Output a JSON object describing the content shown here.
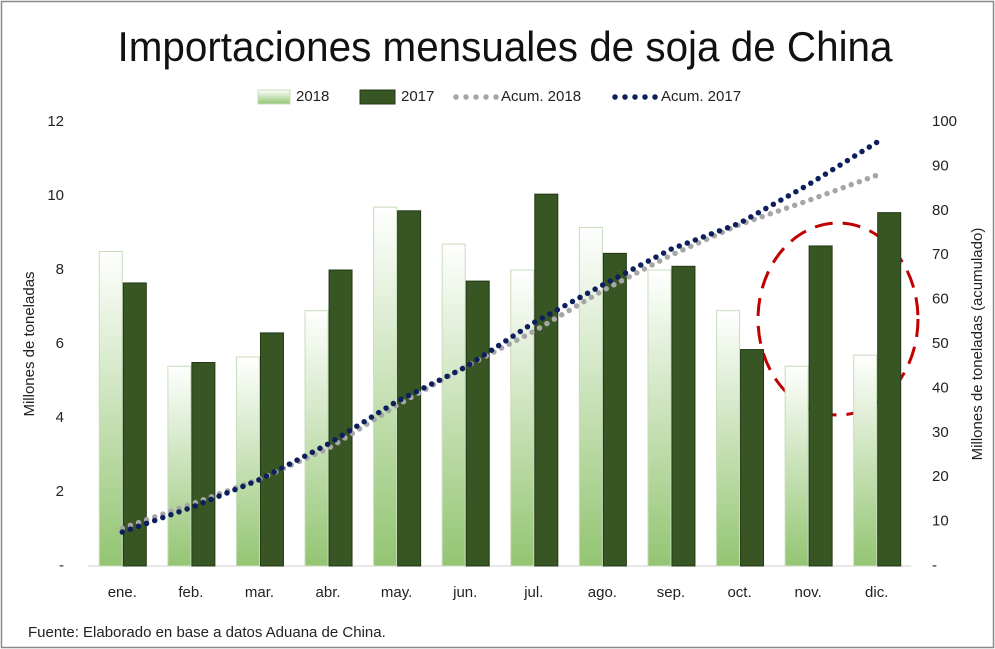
{
  "chart_data": {
    "type": "bar",
    "title": "Importaciones mensuales de soja de China",
    "y_label": "Millones de toneladas",
    "y2_label": "Millones de toneladas (acumulado)",
    "source": "Fuente: Elaborado en base a datos Aduana de China.",
    "categories": [
      "ene.",
      "feb.",
      "mar.",
      "abr.",
      "may.",
      "jun.",
      "jul.",
      "ago.",
      "sep.",
      "oct.",
      "nov.",
      "dic."
    ],
    "series": [
      {
        "name": "2018",
        "type": "bar",
        "color": "#93c572",
        "values": [
          8.5,
          5.4,
          5.65,
          6.9,
          9.7,
          8.7,
          8.0,
          9.15,
          8.0,
          6.9,
          5.4,
          5.7
        ]
      },
      {
        "name": "2017",
        "type": "bar",
        "color": "#375623",
        "values": [
          7.65,
          5.5,
          6.3,
          8.0,
          9.6,
          7.7,
          10.05,
          8.45,
          8.1,
          5.85,
          8.65,
          9.55
        ]
      },
      {
        "name": "Acum. 2018",
        "type": "line",
        "axis": "y2",
        "color": "#a6a6a6",
        "values": [
          8.5,
          13.9,
          19.55,
          26.45,
          36.15,
          44.85,
          52.85,
          62.0,
          70.0,
          76.9,
          82.3,
          88.0
        ]
      },
      {
        "name": "Acum. 2017",
        "type": "line",
        "axis": "y2",
        "color": "#0d1f5c",
        "values": [
          7.65,
          13.15,
          19.45,
          27.45,
          37.05,
          44.75,
          54.8,
          63.25,
          71.35,
          77.2,
          85.85,
          95.4
        ]
      }
    ],
    "ylim": [
      0,
      12
    ],
    "yticks": [
      {
        "value": 0,
        "label": "-"
      },
      2,
      4,
      6,
      8,
      10,
      12
    ],
    "y2lim": [
      0,
      100
    ],
    "y2ticks": [
      {
        "value": 0,
        "label": "-"
      },
      10,
      20,
      30,
      40,
      50,
      60,
      70,
      80,
      90,
      100
    ],
    "legend": "top",
    "grid": false
  }
}
